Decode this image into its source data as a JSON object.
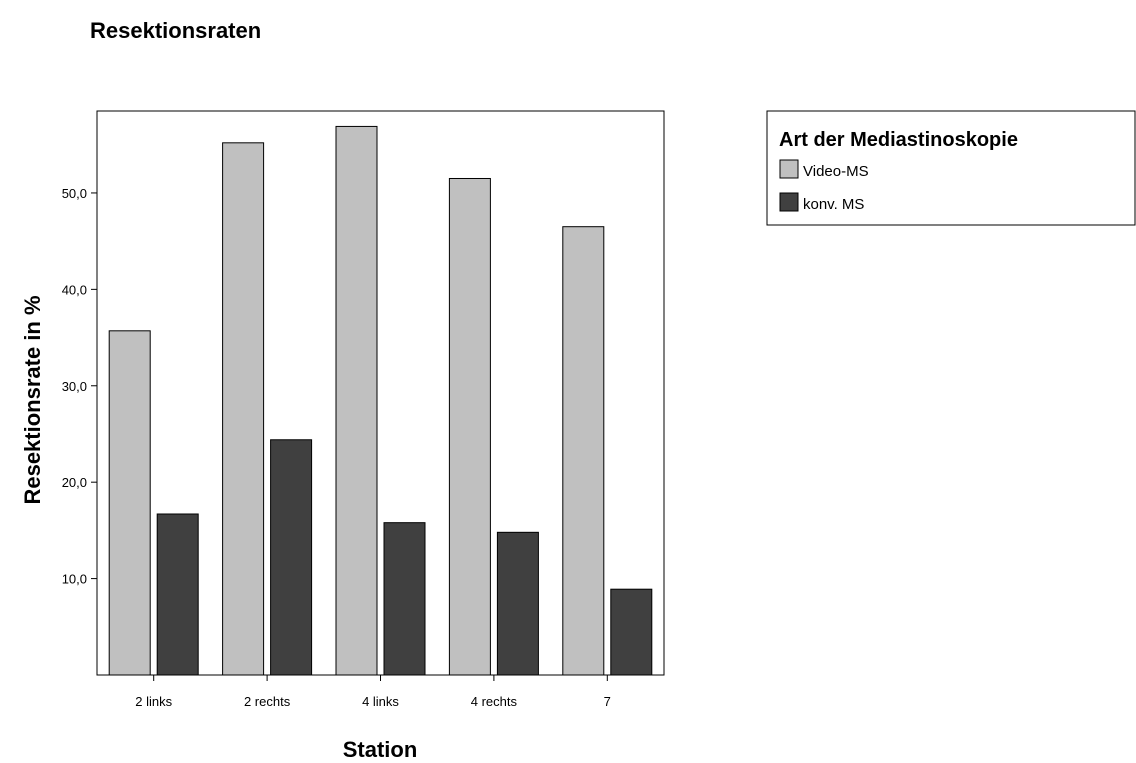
{
  "chart_data": {
    "type": "bar",
    "title": "Resektionsraten",
    "xlabel": "Station",
    "ylabel": "Resektionsrate in %",
    "categories": [
      "2 links",
      "2 rechts",
      "4 links",
      "4 rechts",
      "7"
    ],
    "series": [
      {
        "name": "Video-MS",
        "color": "#c0c0c0",
        "values": [
          35.7,
          55.2,
          56.9,
          51.5,
          46.5
        ]
      },
      {
        "name": "konv. MS",
        "color": "#404040",
        "values": [
          16.7,
          24.4,
          15.8,
          14.8,
          8.9
        ]
      }
    ],
    "ylim": [
      0,
      58.5
    ],
    "yticks": [
      10,
      20,
      30,
      40,
      50
    ],
    "ytick_labels": [
      "10,0",
      "20,0",
      "30,0",
      "40,0",
      "50,0"
    ],
    "grid": false,
    "legend": {
      "title": "Art der Mediastinoskopie",
      "position": "top-right"
    }
  }
}
